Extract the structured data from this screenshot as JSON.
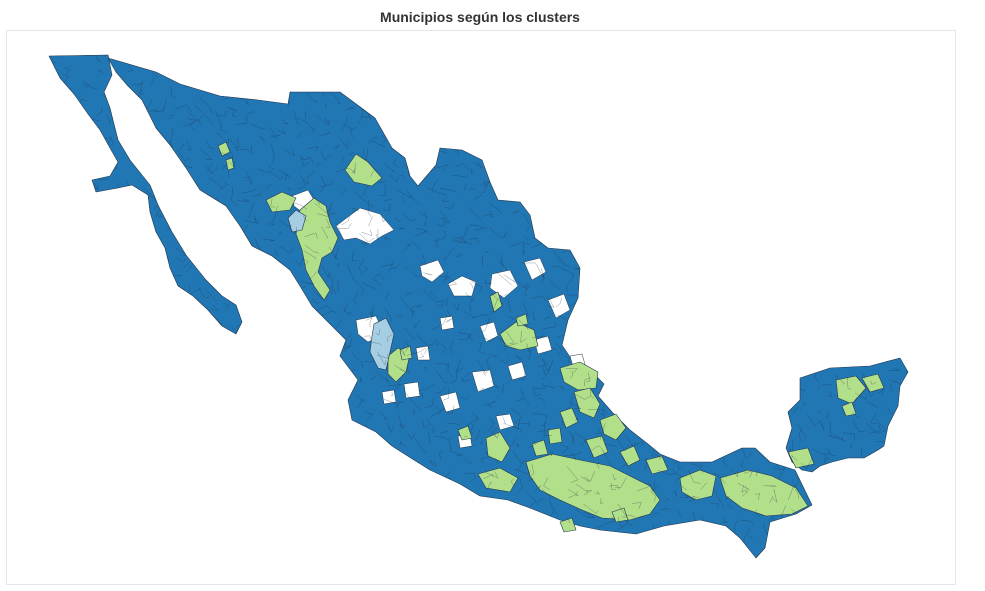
{
  "title": "Municipios según los clusters",
  "colors": {
    "cluster_main": "#2176b4",
    "cluster_green": "#b2df8a",
    "cluster_light": "#a6cee3",
    "background": "#ffffff"
  }
}
